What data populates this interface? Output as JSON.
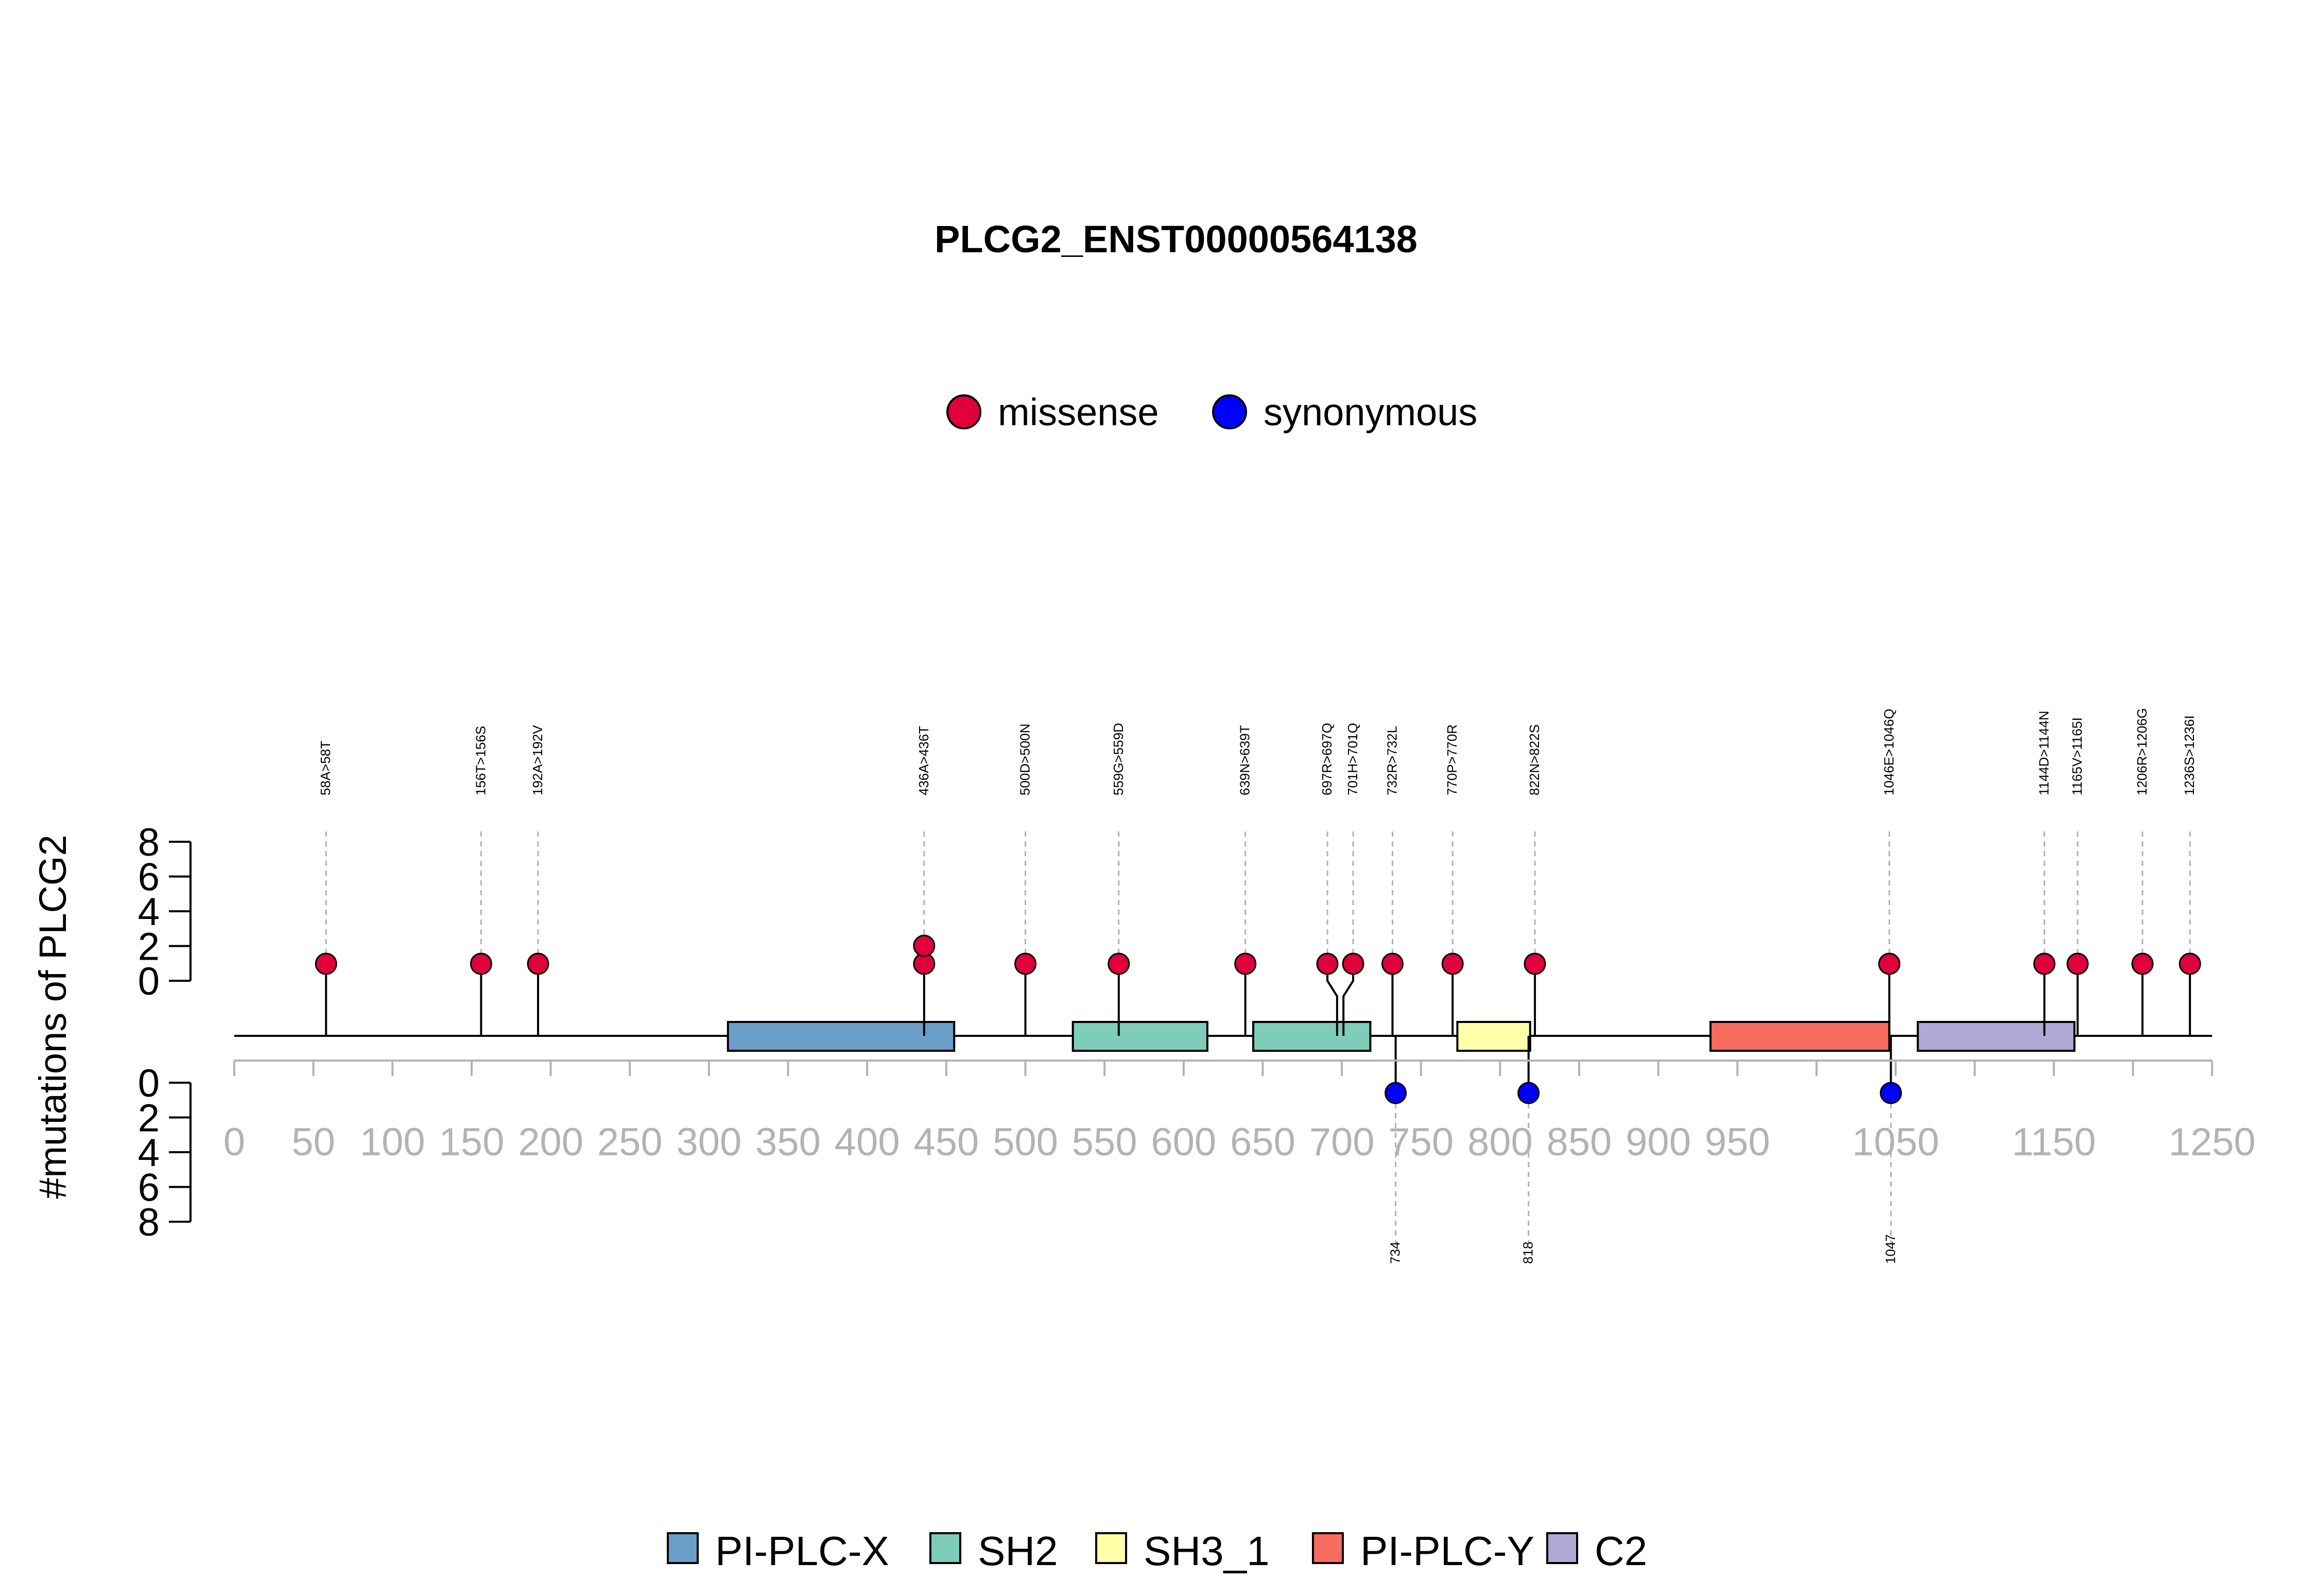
{
  "chart_data": {
    "type": "lollipop",
    "title": "PLCG2_ENST00000564138",
    "ylabel": "#mutations of PLCG2",
    "x_axis": {
      "range": [
        0,
        1250
      ],
      "ticks": [
        0,
        50,
        100,
        150,
        200,
        250,
        300,
        350,
        400,
        450,
        500,
        550,
        600,
        650,
        700,
        750,
        800,
        850,
        900,
        950,
        1050,
        1150,
        1250
      ],
      "minor_ticks": [
        1000,
        1100,
        1200
      ]
    },
    "y_axis_top": {
      "range": [
        0,
        8
      ],
      "ticks": [
        0,
        2,
        4,
        6,
        8
      ]
    },
    "y_axis_bottom": {
      "range": [
        0,
        8
      ],
      "ticks": [
        0,
        2,
        4,
        6,
        8
      ]
    },
    "mutation_legend": [
      {
        "label": "missense",
        "color": "#E0003A"
      },
      {
        "label": "synonymous",
        "color": "#0000FF"
      }
    ],
    "domain_legend": [
      {
        "label": "PI-PLC-X",
        "color": "#6A9EC8"
      },
      {
        "label": "SH2",
        "color": "#7ECDB8"
      },
      {
        "label": "SH3_1",
        "color": "#FFFFA8"
      },
      {
        "label": "PI-PLC-Y",
        "color": "#F86C5F"
      },
      {
        "label": "C2",
        "color": "#AFA9D5"
      }
    ],
    "domains": [
      {
        "name": "PI-PLC-X",
        "start": 312,
        "end": 455,
        "color": "#6A9EC8"
      },
      {
        "name": "SH2",
        "start": 530,
        "end": 615,
        "color": "#7ECDB8"
      },
      {
        "name": "SH2",
        "start": 644,
        "end": 718,
        "color": "#7ECDB8"
      },
      {
        "name": "SH3_1",
        "start": 773,
        "end": 819,
        "color": "#FFFFA8"
      },
      {
        "name": "PI-PLC-Y",
        "start": 933,
        "end": 1046,
        "color": "#F86C5F"
      },
      {
        "name": "C2",
        "start": 1064,
        "end": 1163,
        "color": "#AFA9D5"
      }
    ],
    "mutations_top": [
      {
        "pos": 58,
        "label": "58A>58T",
        "type": "missense",
        "count": 1
      },
      {
        "pos": 156,
        "label": "156T>156S",
        "type": "missense",
        "count": 1
      },
      {
        "pos": 192,
        "label": "192A>192V",
        "type": "missense",
        "count": 1
      },
      {
        "pos": 436,
        "label": "436A>436T",
        "type": "missense",
        "count": 2
      },
      {
        "pos": 500,
        "label": "500D>500N",
        "type": "missense",
        "count": 1
      },
      {
        "pos": 559,
        "label": "559G>559D",
        "type": "missense",
        "count": 1
      },
      {
        "pos": 639,
        "label": "639N>639T",
        "type": "missense",
        "count": 1
      },
      {
        "pos": 697,
        "label": "697R>697Q",
        "type": "missense",
        "count": 1
      },
      {
        "pos": 701,
        "label": "701H>701Q",
        "type": "missense",
        "count": 1
      },
      {
        "pos": 732,
        "label": "732R>732L",
        "type": "missense",
        "count": 1
      },
      {
        "pos": 770,
        "label": "770P>770R",
        "type": "missense",
        "count": 1
      },
      {
        "pos": 822,
        "label": "822N>822S",
        "type": "missense",
        "count": 1
      },
      {
        "pos": 1046,
        "label": "1046E>1046Q",
        "type": "missense",
        "count": 1
      },
      {
        "pos": 1144,
        "label": "1144D>1144N",
        "type": "missense",
        "count": 1
      },
      {
        "pos": 1165,
        "label": "1165V>1165I",
        "type": "missense",
        "count": 1
      },
      {
        "pos": 1206,
        "label": "1206R>1206G",
        "type": "missense",
        "count": 1
      },
      {
        "pos": 1236,
        "label": "1236S>1236I",
        "type": "missense",
        "count": 1
      }
    ],
    "mutations_bottom": [
      {
        "pos": 734,
        "label": "734",
        "type": "synonymous",
        "count": 1
      },
      {
        "pos": 818,
        "label": "818",
        "type": "synonymous",
        "count": 1
      },
      {
        "pos": 1047,
        "label": "1047",
        "type": "synonymous",
        "count": 1
      }
    ]
  }
}
